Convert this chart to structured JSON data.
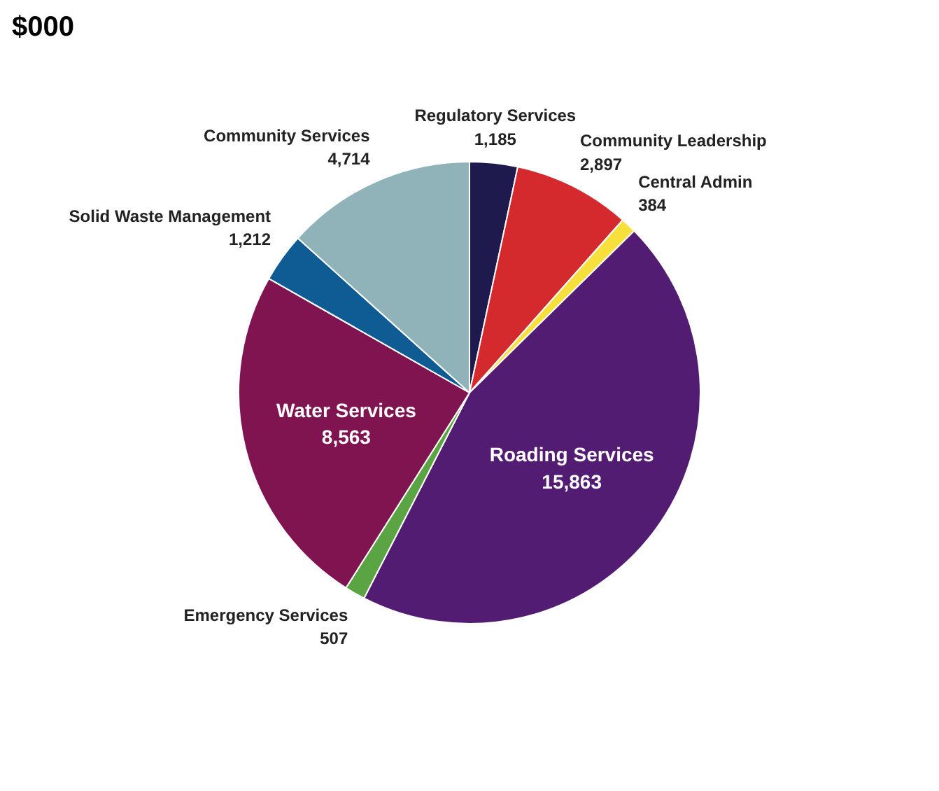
{
  "chart_data": {
    "type": "pie",
    "title": "$000",
    "categories": [
      "Regulatory Services",
      "Community Leadership",
      "Central Admin",
      "Roading Services",
      "Emergency Services",
      "Water Services",
      "Solid Waste Management",
      "Community Services"
    ],
    "values": [
      1185,
      2897,
      384,
      15863,
      507,
      8563,
      1212,
      4714
    ],
    "colors": [
      "#1f1a4e",
      "#d42a2e",
      "#f7e03c",
      "#531c73",
      "#5ba443",
      "#7f1450",
      "#0f5c94",
      "#8fb3b8"
    ],
    "value_labels": [
      "1,185",
      "2,897",
      "384",
      "15,863",
      "507",
      "8,563",
      "1,212",
      "4,714"
    ]
  }
}
